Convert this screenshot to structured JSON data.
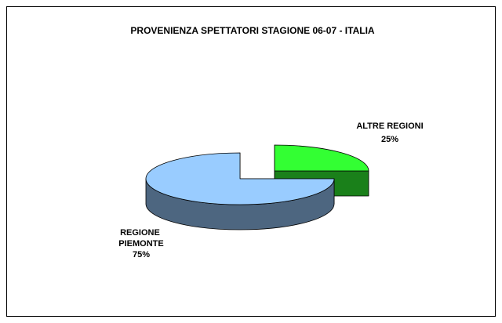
{
  "chart_data": {
    "type": "pie3d",
    "title": "PROVENIENZA SPETTATORI STAGIONE 06-07 - ITALIA",
    "categories": [
      "ALTRE REGIONI",
      "REGIONE PIEMONTE"
    ],
    "values": [
      25,
      75
    ],
    "value_labels": [
      "25%",
      "75%"
    ],
    "colors": [
      "#33ff33",
      "#99ccff"
    ]
  }
}
